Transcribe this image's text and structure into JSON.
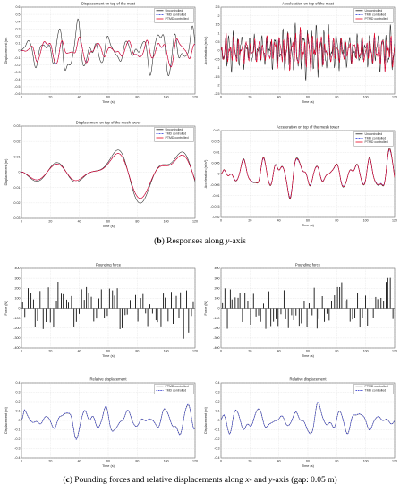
{
  "captions": {
    "b": {
      "label": "b",
      "text_before": "Responses along ",
      "axis": "y",
      "text_after": "-axis"
    },
    "c": {
      "label": "c",
      "text_before": "Pounding forces and relative displacements along ",
      "axis1": "x",
      "text_mid": "- and ",
      "axis2": "y",
      "text_after": "-axis (gap: 0.05 m)"
    }
  },
  "colors": {
    "uncontrolled": "#222222",
    "tmd": "#1f2fd9",
    "ptmd": "#e8001c",
    "pound": "#111111",
    "ptmd_rel": "#777777",
    "tmd_rel": "#1a22c8"
  },
  "chart_data": [
    {
      "id": "disp-mast",
      "type": "line",
      "title": "Displacement on top of the mast",
      "xlabel": "Time (s)",
      "ylabel": "Displacement (m)",
      "xlim": [
        0,
        120
      ],
      "ylim": [
        -0.6,
        0.6
      ],
      "xticks": [
        "0",
        "20",
        "40",
        "60",
        "80",
        "100",
        "120"
      ],
      "yticks": [
        "-0.6",
        "-0.5",
        "-0.4",
        "-0.3",
        "-0.2",
        "-0.1",
        "0",
        "0.1",
        "0.2",
        "0.3",
        "0.4",
        "0.5",
        "0.6"
      ],
      "grid": true,
      "legend_position": "top-right",
      "series": [
        {
          "name": "Uncontrolled",
          "color_key": "uncontrolled",
          "dash": "",
          "seed": 11,
          "amp": 0.42,
          "freq": 0.55,
          "mod": 0.6,
          "x": [
            0,
            20,
            40,
            60,
            80,
            100,
            120
          ],
          "values": [
            0,
            -0.45,
            0.48,
            -0.3,
            0.35,
            -0.5,
            0.2
          ]
        },
        {
          "name": "TMD controlled",
          "color_key": "tmd",
          "dash": "2,1",
          "seed": 12,
          "amp": 0.23,
          "freq": 0.55,
          "mod": 0.5,
          "x": [
            0,
            20,
            40,
            60,
            80,
            100,
            120
          ],
          "values": [
            0,
            -0.22,
            0.3,
            -0.18,
            0.2,
            -0.22,
            0.1
          ]
        },
        {
          "name": "PTMD controlled",
          "color_key": "ptmd",
          "dash": "",
          "seed": 12,
          "amp": 0.24,
          "freq": 0.55,
          "mod": 0.5,
          "x": [
            0,
            20,
            40,
            60,
            80,
            100,
            120
          ],
          "values": [
            0,
            -0.24,
            0.32,
            -0.2,
            0.22,
            -0.24,
            0.12
          ]
        }
      ]
    },
    {
      "id": "acc-mast",
      "type": "line",
      "title": "Acceleration on top of the mast",
      "xlabel": "Time (s)",
      "ylabel": "Acceleration (m/s²)",
      "xlim": [
        0,
        120
      ],
      "ylim": [
        -2.5,
        2.5
      ],
      "xticks": [
        "0",
        "20",
        "40",
        "60",
        "80",
        "100",
        "120"
      ],
      "yticks": [
        "-2.5",
        "-2",
        "-1.5",
        "-1",
        "-0.5",
        "0",
        "0.5",
        "1",
        "1.5",
        "2",
        "2.5"
      ],
      "grid": true,
      "legend_position": "top-right",
      "series": [
        {
          "name": "Uncontrolled",
          "color_key": "uncontrolled",
          "dash": "",
          "seed": 21,
          "amp": 1.9,
          "freq": 2.2,
          "mod": 0.4,
          "x": [
            0,
            20,
            40,
            60,
            80,
            100,
            120
          ],
          "values": [
            0,
            -1.8,
            2.0,
            -1.6,
            1.7,
            -1.5,
            1.2
          ]
        },
        {
          "name": "TMD controlled",
          "color_key": "tmd",
          "dash": "2,1",
          "seed": 22,
          "amp": 1.4,
          "freq": 2.2,
          "mod": 0.4,
          "x": [
            0,
            20,
            40,
            60,
            80,
            100,
            120
          ],
          "values": [
            0,
            -1.3,
            1.5,
            -1.2,
            1.3,
            -1.1,
            0.9
          ]
        },
        {
          "name": "PTMD controlled",
          "color_key": "ptmd",
          "dash": "",
          "seed": 22,
          "amp": 1.45,
          "freq": 2.2,
          "mod": 0.4,
          "x": [
            0,
            20,
            40,
            60,
            80,
            100,
            120
          ],
          "values": [
            0,
            -1.35,
            1.55,
            -1.25,
            1.35,
            -1.15,
            0.95
          ]
        }
      ]
    },
    {
      "id": "disp-tower",
      "type": "line",
      "title": "Displacement on top of the mesh tower",
      "xlabel": "Time (s)",
      "ylabel": "Displacement (m)",
      "xlim": [
        0,
        120
      ],
      "ylim": [
        -0.03,
        0.03
      ],
      "xticks": [
        "0",
        "20",
        "40",
        "60",
        "80",
        "100",
        "120"
      ],
      "yticks": [
        "-0.03",
        "-0.02",
        "-0.01",
        "0",
        "0.01",
        "0.02",
        "0.03"
      ],
      "grid": true,
      "legend_position": "top-right",
      "series": [
        {
          "name": "Uncontrolled",
          "color_key": "uncontrolled",
          "dash": "",
          "seed": 31,
          "amp": 0.026,
          "freq": 0.16,
          "mod": 0.1,
          "grow": true,
          "x": [
            0,
            20,
            40,
            60,
            80,
            100,
            120
          ],
          "values": [
            0,
            -0.007,
            0.012,
            -0.015,
            0.022,
            -0.026,
            0.018
          ]
        },
        {
          "name": "TMD controlled",
          "color_key": "tmd",
          "dash": "2,1",
          "seed": 31,
          "amp": 0.022,
          "freq": 0.16,
          "mod": 0.1,
          "grow": true,
          "x": [
            0,
            20,
            40,
            60,
            80,
            100,
            120
          ],
          "values": [
            0,
            -0.006,
            0.01,
            -0.013,
            0.019,
            -0.022,
            0.016
          ]
        },
        {
          "name": "PTMD controlled",
          "color_key": "ptmd",
          "dash": "",
          "seed": 31,
          "amp": 0.022,
          "freq": 0.16,
          "mod": 0.1,
          "grow": true,
          "x": [
            0,
            20,
            40,
            60,
            80,
            100,
            120
          ],
          "values": [
            0,
            -0.006,
            0.01,
            -0.013,
            0.019,
            -0.022,
            0.016
          ]
        }
      ]
    },
    {
      "id": "acc-tower",
      "type": "line",
      "title": "Acceleration on top of the mesh tower",
      "xlabel": "Time (s)",
      "ylabel": "Acceleration (m/s²)",
      "xlim": [
        0,
        120
      ],
      "ylim": [
        -0.02,
        0.02
      ],
      "xticks": [
        "0",
        "20",
        "40",
        "60",
        "80",
        "100",
        "120"
      ],
      "yticks": [
        "-0.02",
        "-0.015",
        "-0.01",
        "-0.005",
        "0",
        "0.005",
        "0.01",
        "0.015",
        "0.02"
      ],
      "grid": true,
      "legend_position": "top-right",
      "series": [
        {
          "name": "Uncontrolled",
          "color_key": "uncontrolled",
          "dash": "",
          "seed": 41,
          "amp": 0.012,
          "freq": 0.5,
          "mod": 0.5,
          "x": [
            0,
            20,
            40,
            60,
            80,
            100,
            120
          ],
          "values": [
            0,
            -0.01,
            0.012,
            -0.011,
            0.014,
            -0.012,
            0.01
          ]
        },
        {
          "name": "TMD controlled",
          "color_key": "tmd",
          "dash": "2,1",
          "seed": 41,
          "amp": 0.011,
          "freq": 0.5,
          "mod": 0.5,
          "x": [
            0,
            20,
            40,
            60,
            80,
            100,
            120
          ],
          "values": [
            0,
            -0.009,
            0.011,
            -0.01,
            0.013,
            -0.011,
            0.009
          ]
        },
        {
          "name": "PTMD controlled",
          "color_key": "ptmd",
          "dash": "",
          "seed": 41,
          "amp": 0.0115,
          "freq": 0.5,
          "mod": 0.5,
          "x": [
            0,
            20,
            40,
            60,
            80,
            100,
            120
          ],
          "values": [
            0,
            -0.0095,
            0.0115,
            -0.0105,
            0.0135,
            -0.0115,
            0.0095
          ]
        }
      ]
    },
    {
      "id": "pound-x",
      "type": "bar",
      "title": "Pounding force",
      "xlabel": "Time (s)",
      "ylabel": "Force (N)",
      "xlim": [
        0,
        120
      ],
      "ylim": [
        -400,
        400
      ],
      "xticks": [
        "0",
        "20",
        "40",
        "60",
        "80",
        "100",
        "120"
      ],
      "yticks": [
        "-400",
        "-300",
        "-200",
        "-100",
        "0",
        "100",
        "200",
        "300",
        "400"
      ],
      "grid": true,
      "series": [
        {
          "name": "",
          "color_key": "pound",
          "seed": 51,
          "amp": 250,
          "spikes": 68
        }
      ]
    },
    {
      "id": "pound-y",
      "type": "bar",
      "title": "Pounding force",
      "xlabel": "Time (s)",
      "ylabel": "Force (N)",
      "xlim": [
        0,
        120
      ],
      "ylim": [
        -400,
        400
      ],
      "xticks": [
        "0",
        "20",
        "40",
        "60",
        "80",
        "100",
        "120"
      ],
      "yticks": [
        "-400",
        "-300",
        "-200",
        "-100",
        "0",
        "100",
        "200",
        "300",
        "400"
      ],
      "grid": true,
      "series": [
        {
          "name": "",
          "color_key": "pound",
          "seed": 61,
          "amp": 250,
          "spikes": 68
        }
      ]
    },
    {
      "id": "rel-x",
      "type": "line",
      "title": "Relative displacement",
      "xlabel": "Time (s)",
      "ylabel": "Displacement (m)",
      "xlim": [
        0,
        120
      ],
      "ylim": [
        -0.4,
        0.4
      ],
      "xticks": [
        "0",
        "20",
        "40",
        "60",
        "80",
        "100",
        "120"
      ],
      "yticks": [
        "-0.4",
        "-0.3",
        "-0.2",
        "-0.1",
        "0",
        "0.1",
        "0.2",
        "0.3",
        "0.4"
      ],
      "grid": true,
      "legend_position": "top-right",
      "series": [
        {
          "name": "PTMD controlled",
          "color_key": "ptmd_rel",
          "dash": "",
          "seed": 71,
          "amp": 0.2,
          "freq": 0.45,
          "mod": 0.6,
          "x": [
            0,
            20,
            40,
            60,
            80,
            100,
            120
          ],
          "values": [
            0,
            -0.15,
            0.2,
            -0.18,
            0.22,
            -0.3,
            0.25
          ]
        },
        {
          "name": "TMD controlled",
          "color_key": "tmd_rel",
          "dash": "1.6,0.8",
          "seed": 71,
          "amp": 0.21,
          "freq": 0.45,
          "mod": 0.6,
          "x": [
            0,
            20,
            40,
            60,
            80,
            100,
            120
          ],
          "values": [
            0,
            -0.16,
            0.21,
            -0.19,
            0.23,
            -0.32,
            0.26
          ]
        }
      ]
    },
    {
      "id": "rel-y",
      "type": "line",
      "title": "Relative displacement",
      "xlabel": "Time (s)",
      "ylabel": "Displacement (m)",
      "xlim": [
        0,
        120
      ],
      "ylim": [
        -0.4,
        0.4
      ],
      "xticks": [
        "0",
        "20",
        "40",
        "60",
        "80",
        "100",
        "120"
      ],
      "yticks": [
        "-0.4",
        "-0.3",
        "-0.2",
        "-0.1",
        "0",
        "0.1",
        "0.2",
        "0.3",
        "0.4"
      ],
      "grid": true,
      "legend_position": "top-right",
      "series": [
        {
          "name": "PTMD controlled",
          "color_key": "ptmd_rel",
          "dash": "",
          "seed": 81,
          "amp": 0.2,
          "freq": 0.45,
          "mod": 0.6,
          "x": [
            0,
            20,
            40,
            60,
            80,
            100,
            120
          ],
          "values": [
            0,
            -0.14,
            0.19,
            -0.2,
            0.21,
            -0.31,
            0.24
          ]
        },
        {
          "name": "TMD controlled",
          "color_key": "tmd_rel",
          "dash": "1.6,0.8",
          "seed": 81,
          "amp": 0.21,
          "freq": 0.45,
          "mod": 0.6,
          "x": [
            0,
            20,
            40,
            60,
            80,
            100,
            120
          ],
          "values": [
            0,
            -0.15,
            0.2,
            -0.21,
            0.22,
            -0.33,
            0.25
          ]
        }
      ]
    }
  ]
}
